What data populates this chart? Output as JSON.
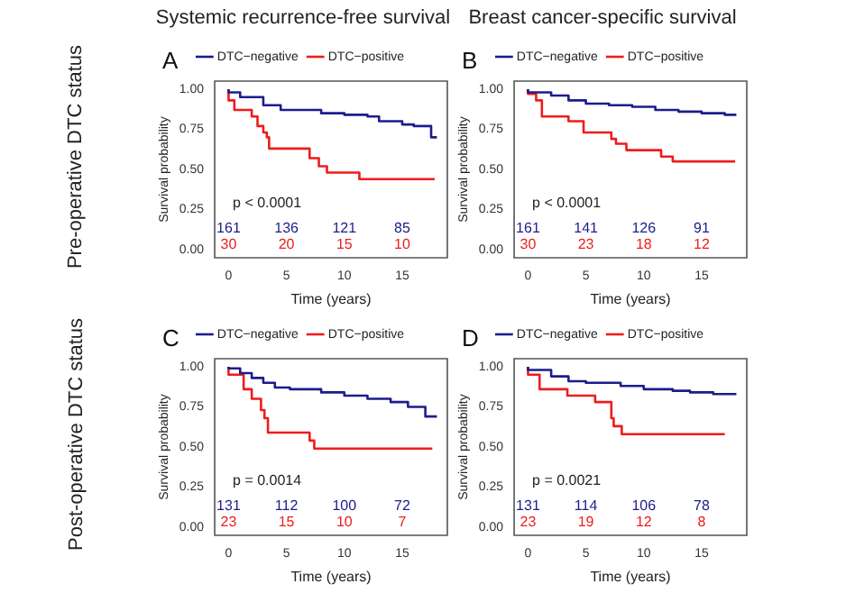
{
  "chart_data": [
    {
      "type": "step",
      "title": "Systemic recurrence-free survival",
      "xlabel": "Time (years)",
      "ylabel": "Survival probability",
      "legend": "top",
      "xlim": [
        -1.2,
        18.9
      ],
      "xticks": [
        0,
        5,
        10,
        15
      ],
      "ylim": [
        -0.05,
        1.05
      ],
      "yticks": [
        {
          "value": 0,
          "label": "0.00"
        },
        {
          "value": 0.25,
          "label": "0.25"
        },
        {
          "value": 0.5,
          "label": "0.50"
        },
        {
          "value": 0.75,
          "label": "0.75"
        },
        {
          "value": 1,
          "label": "1.00"
        }
      ],
      "series": [
        {
          "name": "DTC−negative",
          "color": "#1c1c8c",
          "x": [
            0,
            1,
            3,
            4.5,
            5.5,
            8,
            10,
            12,
            13,
            15,
            16,
            17.5,
            17.7,
            18
          ],
          "values": [
            1,
            0.98,
            0.95,
            0.9,
            0.87,
            0.87,
            0.85,
            0.84,
            0.83,
            0.8,
            0.78,
            0.77,
            0.7,
            0.7
          ]
        },
        {
          "name": "DTC−positive",
          "color": "#ee1c1c",
          "x": [
            0,
            0.5,
            2,
            2.5,
            3,
            3.3,
            3.5,
            7,
            7.8,
            8.5,
            11.3,
            15,
            17.8
          ],
          "values": [
            1,
            0.93,
            0.87,
            0.83,
            0.77,
            0.73,
            0.7,
            0.63,
            0.57,
            0.52,
            0.48,
            0.44,
            0.44
          ]
        }
      ],
      "annotations": [
        "A",
        "Pre-operative DTC status",
        "p < 0.0001",
        "161",
        "136",
        "121",
        "85",
        "30",
        "20",
        "15",
        "10"
      ]
    },
    {
      "type": "step",
      "title": "Breast cancer-specific survival",
      "xlabel": "Time (years)",
      "ylabel": "Survival probability",
      "legend": "top",
      "xlim": [
        -1.2,
        18.9
      ],
      "xticks": [
        0,
        5,
        10,
        15
      ],
      "ylim": [
        -0.05,
        1.05
      ],
      "yticks": [
        {
          "value": 0,
          "label": "0.00"
        },
        {
          "value": 0.25,
          "label": "0.25"
        },
        {
          "value": 0.5,
          "label": "0.50"
        },
        {
          "value": 0.75,
          "label": "0.75"
        },
        {
          "value": 1,
          "label": "1.00"
        }
      ],
      "series": [
        {
          "name": "DTC−negative",
          "color": "#1c1c8c",
          "x": [
            0,
            2,
            3.5,
            5,
            7,
            9,
            11,
            13,
            15,
            17,
            17.5,
            18
          ],
          "values": [
            1,
            0.98,
            0.96,
            0.93,
            0.91,
            0.9,
            0.89,
            0.87,
            0.86,
            0.85,
            0.84,
            0.84
          ]
        },
        {
          "name": "DTC−positive",
          "color": "#ee1c1c",
          "x": [
            0,
            0.7,
            1.2,
            3.5,
            4.8,
            7.2,
            7.6,
            8.5,
            11.5,
            12.5,
            14.6,
            17.9
          ],
          "values": [
            1,
            0.97,
            0.93,
            0.83,
            0.8,
            0.73,
            0.69,
            0.66,
            0.62,
            0.58,
            0.55,
            0.55
          ]
        }
      ],
      "annotations": [
        "B",
        "p < 0.0001",
        "161",
        "141",
        "126",
        "91",
        "30",
        "23",
        "18",
        "12"
      ]
    },
    {
      "type": "step",
      "xlabel": "Time (years)",
      "ylabel": "Survival probability",
      "legend": "top",
      "xlim": [
        -1.2,
        18.9
      ],
      "xticks": [
        0,
        5,
        10,
        15
      ],
      "ylim": [
        -0.05,
        1.05
      ],
      "yticks": [
        {
          "value": 0,
          "label": "0.00"
        },
        {
          "value": 0.25,
          "label": "0.25"
        },
        {
          "value": 0.5,
          "label": "0.50"
        },
        {
          "value": 0.75,
          "label": "0.75"
        },
        {
          "value": 1,
          "label": "1.00"
        }
      ],
      "series": [
        {
          "name": "DTC−negative",
          "color": "#1c1c8c",
          "x": [
            0,
            1,
            2,
            3,
            4,
            5.3,
            8,
            10,
            12,
            14,
            15.5,
            17,
            17.7,
            18
          ],
          "values": [
            1,
            0.99,
            0.96,
            0.93,
            0.9,
            0.87,
            0.86,
            0.84,
            0.82,
            0.8,
            0.78,
            0.75,
            0.69,
            0.69
          ]
        },
        {
          "name": "DTC−positive",
          "color": "#ee1c1c",
          "x": [
            0,
            1.3,
            2,
            2.8,
            3.1,
            3.4,
            7,
            7.4,
            13.6,
            17.6
          ],
          "values": [
            1,
            0.95,
            0.86,
            0.8,
            0.73,
            0.68,
            0.59,
            0.54,
            0.49,
            0.49
          ]
        }
      ],
      "annotations": [
        "C",
        "Post-operative DTC status",
        "p = 0.0014",
        "131",
        "112",
        "100",
        "72",
        "23",
        "15",
        "10",
        "7"
      ]
    },
    {
      "type": "step",
      "xlabel": "Time (years)",
      "ylabel": "Survival probability",
      "legend": "top",
      "xlim": [
        -1.2,
        18.9
      ],
      "xticks": [
        0,
        5,
        10,
        15
      ],
      "ylim": [
        -0.05,
        1.05
      ],
      "yticks": [
        {
          "value": 0,
          "label": "0.00"
        },
        {
          "value": 0.25,
          "label": "0.25"
        },
        {
          "value": 0.5,
          "label": "0.50"
        },
        {
          "value": 0.75,
          "label": "0.75"
        },
        {
          "value": 1,
          "label": "1.00"
        }
      ],
      "series": [
        {
          "name": "DTC−negative",
          "color": "#1c1c8c",
          "x": [
            0,
            2,
            3.5,
            5,
            8,
            10,
            12.5,
            14,
            16,
            17,
            18
          ],
          "values": [
            1,
            0.98,
            0.94,
            0.91,
            0.9,
            0.88,
            0.86,
            0.85,
            0.84,
            0.83,
            0.83
          ]
        },
        {
          "name": "DTC−positive",
          "color": "#ee1c1c",
          "x": [
            0,
            1,
            3.4,
            5.8,
            7.2,
            7.4,
            8.1,
            11.6,
            17
          ],
          "values": [
            1,
            0.95,
            0.86,
            0.82,
            0.78,
            0.68,
            0.63,
            0.58,
            0.58
          ]
        }
      ],
      "annotations": [
        "D",
        "p = 0.0021",
        "131",
        "114",
        "106",
        "78",
        "23",
        "19",
        "12",
        "8"
      ]
    }
  ]
}
